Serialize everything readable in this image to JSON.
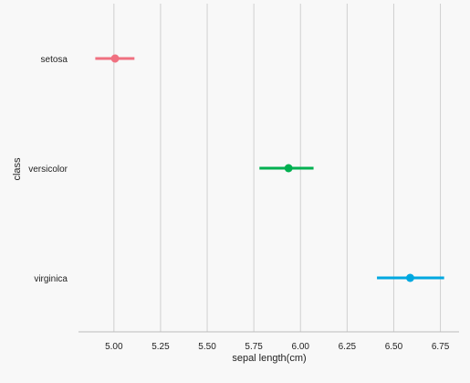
{
  "chart_data": {
    "type": "pointplot",
    "orientation": "horizontal",
    "xlabel": "sepal length(cm)",
    "ylabel": "class",
    "xlim": [
      4.81,
      6.85
    ],
    "xticks": [
      5.0,
      5.25,
      5.5,
      5.75,
      6.0,
      6.25,
      6.5,
      6.75
    ],
    "xtick_labels": [
      "5.00",
      "5.25",
      "5.50",
      "5.75",
      "6.00",
      "6.25",
      "6.50",
      "6.75"
    ],
    "grid": "vertical",
    "categories": [
      "setosa",
      "versicolor",
      "virginica"
    ],
    "series": [
      {
        "category": "setosa",
        "mean": 5.006,
        "ci": [
          4.9,
          5.11
        ],
        "color": "#f07080"
      },
      {
        "category": "versicolor",
        "mean": 5.936,
        "ci": [
          5.78,
          6.07
        ],
        "color": "#00b050"
      },
      {
        "category": "virginica",
        "mean": 6.588,
        "ci": [
          6.41,
          6.77
        ],
        "color": "#00a8e0"
      }
    ]
  }
}
